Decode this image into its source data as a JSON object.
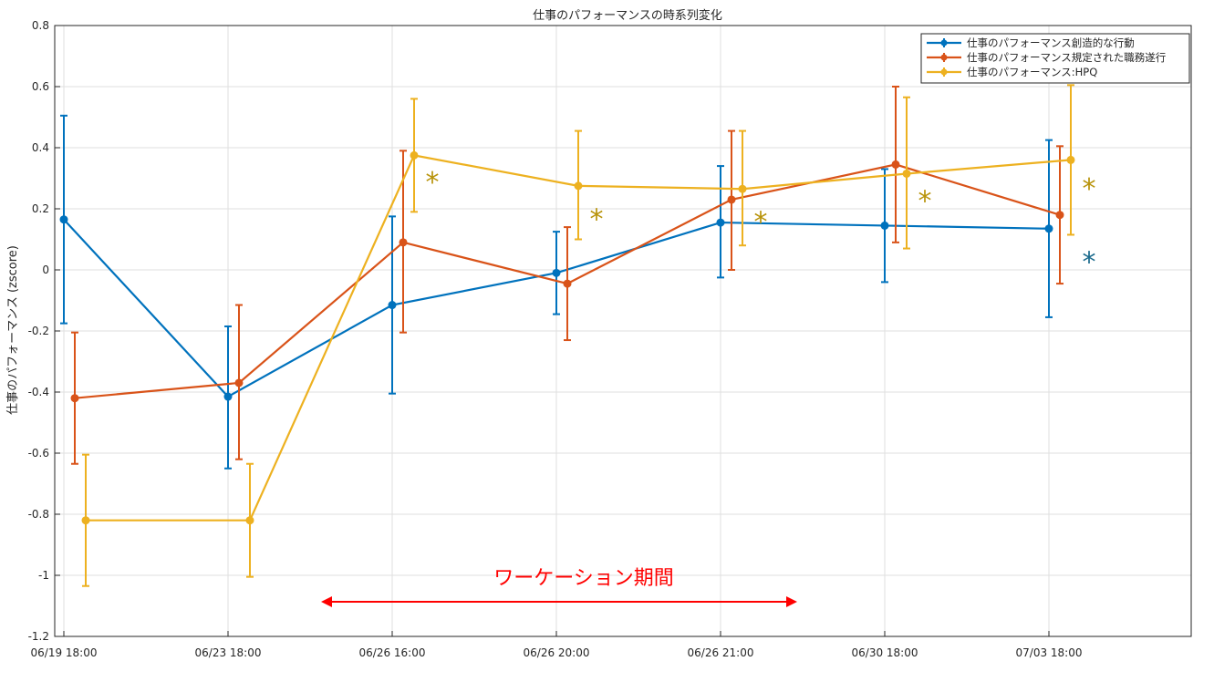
{
  "chart_data": {
    "type": "line",
    "title": "仕事のパフォーマンスの時系列変化",
    "xlabel": "",
    "ylabel": "仕事のパフォーマンス (zscore)",
    "categories": [
      "06/19 18:00",
      "06/23 18:00",
      "06/26 16:00",
      "06/26 20:00",
      "06/26 21:00",
      "06/30 18:00",
      "07/03 18:00"
    ],
    "ylim": [
      -1.2,
      0.8
    ],
    "yticks": [
      "0.8",
      "0.6",
      "0.4",
      "0.2",
      "0",
      "-0.2",
      "-0.4",
      "-0.6",
      "-0.8",
      "-1",
      "-1.2"
    ],
    "ytick_values": [
      0.8,
      0.6,
      0.4,
      0.2,
      0,
      -0.2,
      -0.4,
      -0.6,
      -0.8,
      -1,
      -1.2
    ],
    "grid": true,
    "legend_position": "top-right",
    "series": [
      {
        "name": "仕事のパフォーマンス創造的な行動",
        "color": "#0072BD",
        "values": [
          0.165,
          -0.415,
          -0.115,
          -0.01,
          0.155,
          0.145,
          0.135
        ],
        "err_low": [
          -0.175,
          -0.65,
          -0.405,
          -0.145,
          -0.025,
          -0.04,
          -0.155
        ],
        "err_high": [
          0.505,
          -0.185,
          0.175,
          0.125,
          0.34,
          0.33,
          0.425
        ]
      },
      {
        "name": "仕事のパフォーマンス規定された職務遂行",
        "color": "#D95319",
        "values": [
          -0.42,
          -0.37,
          0.09,
          -0.045,
          0.23,
          0.345,
          0.18
        ],
        "err_low": [
          -0.635,
          -0.62,
          -0.205,
          -0.23,
          0.0,
          0.09,
          -0.045
        ],
        "err_high": [
          -0.205,
          -0.115,
          0.39,
          0.14,
          0.455,
          0.6,
          0.405
        ]
      },
      {
        "name": "仕事のパフォーマンス:HPQ",
        "color": "#EDB120",
        "values": [
          -0.82,
          -0.82,
          0.375,
          0.275,
          0.265,
          0.315,
          0.36
        ],
        "err_low": [
          -1.035,
          -1.005,
          0.19,
          0.1,
          0.08,
          0.07,
          0.115
        ],
        "err_high": [
          -0.605,
          -0.635,
          0.56,
          0.455,
          0.455,
          0.565,
          0.605
        ]
      }
    ],
    "annotations": [
      {
        "text": "*",
        "category_index": 2,
        "y": 0.31,
        "color": "#b8930a"
      },
      {
        "text": "*",
        "category_index": 3,
        "y": 0.19,
        "color": "#b8930a"
      },
      {
        "text": "*",
        "category_index": 4,
        "y": 0.18,
        "color": "#b8930a"
      },
      {
        "text": "*",
        "category_index": 5,
        "y": 0.25,
        "color": "#b8930a"
      },
      {
        "text": "*",
        "category_index": 6,
        "y": 0.29,
        "color": "#b8930a"
      },
      {
        "text": "*",
        "category_index": 6,
        "y": 0.05,
        "color": "#1a6a8c"
      }
    ],
    "period": {
      "label": "ワーケーション期間",
      "color": "#ff0000"
    }
  }
}
